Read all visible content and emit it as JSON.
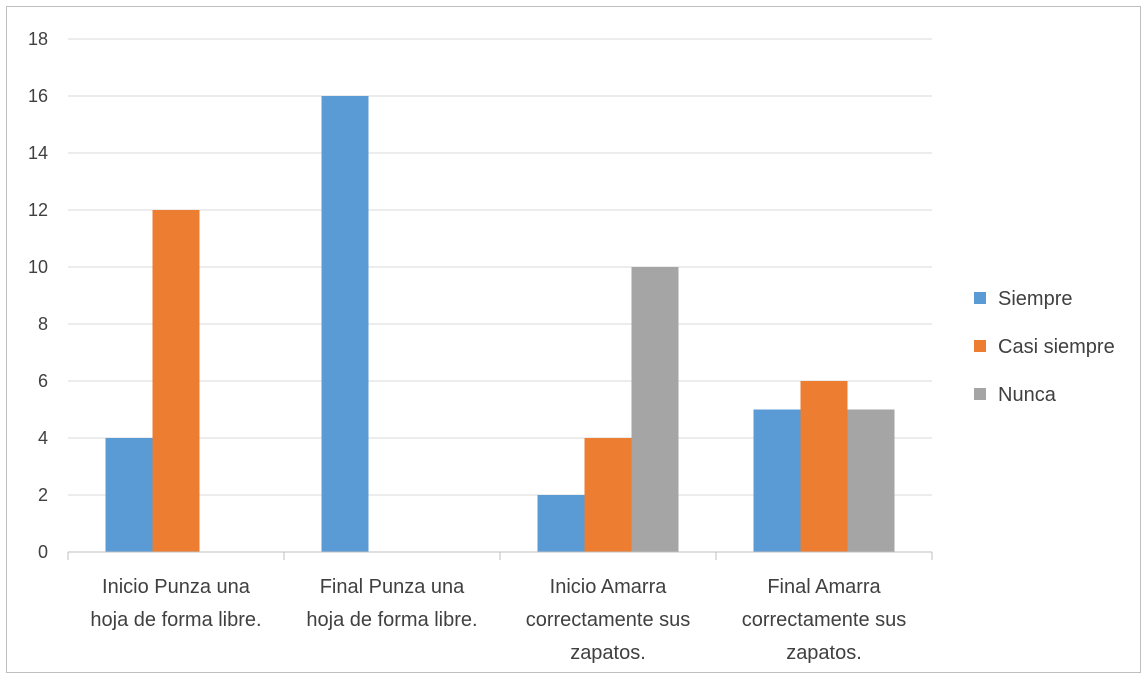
{
  "chart_data": {
    "type": "bar",
    "title": "",
    "xlabel": "",
    "ylabel": "",
    "ylim": [
      0,
      18
    ],
    "yticks": [
      0,
      2,
      4,
      6,
      8,
      10,
      12,
      14,
      16,
      18
    ],
    "grid": true,
    "legend_position": "right",
    "categories": [
      [
        "Inicio Punza una",
        "hoja de forma libre."
      ],
      [
        "Final Punza una",
        "hoja de forma libre."
      ],
      [
        "Inicio Amarra",
        "correctamente sus",
        "zapatos."
      ],
      [
        "Final Amarra",
        "correctamente sus",
        "zapatos."
      ]
    ],
    "series": [
      {
        "name": "Siempre",
        "color": "#5b9bd5",
        "values": [
          4,
          16,
          2,
          5
        ]
      },
      {
        "name": "Casi siempre",
        "color": "#ed7d31",
        "values": [
          12,
          0,
          4,
          6
        ]
      },
      {
        "name": "Nunca",
        "color": "#a5a5a5",
        "values": [
          0,
          0,
          10,
          5
        ]
      }
    ]
  }
}
